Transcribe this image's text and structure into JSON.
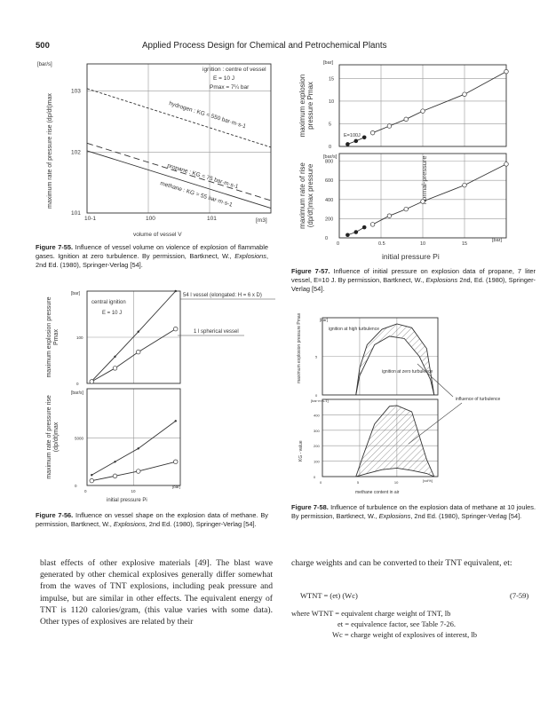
{
  "header": {
    "page_number": "500",
    "book_title": "Applied Process Design for Chemical and Petrochemical Plants"
  },
  "fig55": {
    "caption_label": "Figure 7-55.",
    "caption_text": " Influence of vessel volume on violence of explosion of flammable gases. Ignition at zero turbulence. By permission, Bartknect, W., ",
    "caption_italic": "Explosions",
    "caption_tail": ", 2nd Ed. (1980), Springer-Verlag [54].",
    "ylabel": "maximum rate of pressure rise (dp/dt)max",
    "yunit": "[bar/s]",
    "xunit": "[m3]",
    "xlabel": "volume of vessel V",
    "xticks": [
      "10-1",
      "100",
      "101"
    ],
    "yticks": [
      "101",
      "102",
      "103"
    ],
    "note": [
      "ignition : centre of vessel",
      "E = 10 J",
      "Pmax = 7¼ bar"
    ],
    "chart_data": {
      "type": "line",
      "xscale": "log",
      "yscale": "log",
      "xlim": [
        0.1,
        100
      ],
      "ylim": [
        10,
        2800
      ],
      "series": [
        {
          "name": "hydrogen : KG = 550 bar·m·s-1",
          "style": "dotted",
          "x": [
            0.1,
            100
          ],
          "y": [
            1100,
            120
          ]
        },
        {
          "name": "propane : KG = 75 bar·m·s-1",
          "style": "dashed",
          "x": [
            0.1,
            100
          ],
          "y": [
            140,
            16
          ]
        },
        {
          "name": "methane : KG = 55 bar·m·s-1",
          "style": "solid",
          "x": [
            0.1,
            100
          ],
          "y": [
            105,
            12
          ]
        }
      ]
    }
  },
  "fig57": {
    "caption_label": "Figure 7-57.",
    "caption_text": " Influence of initial pressure on explosion data of propane, 7 liter vessel, E=10 J. By permission, Bartknect, W., ",
    "caption_italic": "Explosions",
    "caption_tail": " 2nd, Ed. (1980), Springer-Verlag [54].",
    "top_ylabel": "maximum explosion pressure Pmax",
    "bottom_ylabel": "maximum rate of rise (dp/dt)max pressure",
    "top_unit": "[bar]",
    "bottom_unit": "[bar/s]",
    "xunit": "[bar]",
    "xlabel": "initial pressure Pi",
    "annotation_energy": "E=100J",
    "annotation_normal": "normal-pressure",
    "xticks": [
      "0",
      "0.5",
      "10",
      "15"
    ],
    "top_yticks": [
      "0",
      "5",
      "10",
      "15"
    ],
    "bottom_yticks": [
      "0",
      "200",
      "400",
      "600",
      "800"
    ],
    "chart_data": [
      {
        "type": "line",
        "xlim": [
          0,
          20
        ],
        "ylim": [
          0,
          18
        ],
        "series": [
          {
            "marker": "filled",
            "x": [
              1,
              2,
              3
            ],
            "y": [
              0.5,
              1.2,
              2
            ]
          },
          {
            "marker": "open",
            "x": [
              4,
              6,
              8,
              10,
              15,
              20
            ],
            "y": [
              3,
              4.5,
              6,
              7.8,
              11.5,
              16.5
            ]
          }
        ]
      },
      {
        "type": "line",
        "xlim": [
          0,
          20
        ],
        "ylim": [
          0,
          880
        ],
        "series": [
          {
            "marker": "filled",
            "x": [
              1,
              2,
              3
            ],
            "y": [
              30,
              60,
              110
            ]
          },
          {
            "marker": "open",
            "x": [
              4,
              6,
              8,
              10,
              15,
              20
            ],
            "y": [
              140,
              230,
              300,
              380,
              550,
              770
            ]
          }
        ]
      }
    ]
  },
  "fig56": {
    "caption_label": "Figure 7-56.",
    "caption_text": " Influence on vessel shape on the explosion data of methane. By permission, Bartknect, W., ",
    "caption_italic": "Explosions",
    "caption_tail": ", 2nd Ed. (1980), Springer-Verlag [54].",
    "top_ylabel": "maximum explosion pressure Pmax",
    "bottom_ylabel": "maximum rate of pressure rise (dp/dt)max",
    "top_unit": "[bar]",
    "bottom_unit": "[bar/s]",
    "xunit": "[bar]",
    "xlabel": "initial pressure Pi",
    "note": [
      "central ignition",
      "E = 10 J"
    ],
    "label_54l": "54 l vessel (elongated: H = 6 x D)",
    "label_1l": "1 l spherical vessel",
    "xticks": [
      "0",
      "10"
    ],
    "top_yticks": [
      "0",
      "100"
    ],
    "bottom_yticks": [
      "0",
      "5000"
    ],
    "chart_data": [
      {
        "type": "line",
        "xlim": [
          0,
          20
        ],
        "ylim": [
          0,
          200
        ],
        "series": [
          {
            "name": "54 l vessel (elongated: H = 6 x D)",
            "marker": "cross",
            "x": [
              1,
              6,
              11,
              19
            ],
            "y": [
              5,
              58,
              112,
              200
            ]
          },
          {
            "name": "1 l spherical vessel",
            "marker": "open",
            "x": [
              1,
              6,
              11,
              19
            ],
            "y": [
              4,
              33,
              68,
              118
            ]
          }
        ]
      },
      {
        "type": "line",
        "xlim": [
          0,
          20
        ],
        "ylim": [
          0,
          10200
        ],
        "series": [
          {
            "marker": "cross",
            "x": [
              1,
              6,
              11,
              19
            ],
            "y": [
              1100,
              2500,
              3900,
              6800
            ]
          },
          {
            "marker": "open",
            "x": [
              1,
              6,
              11,
              19
            ],
            "y": [
              500,
              1000,
              1500,
              2500
            ]
          }
        ]
      }
    ]
  },
  "fig58": {
    "caption_label": "Figure 7-58.",
    "caption_text": " Influence of turbulence on the explosion data of methane at 10 joules. By permission, Bartknect, W., ",
    "caption_italic": "Explosions",
    "caption_tail": ", 2nd Ed. (1980), Springer-Verlag [54].",
    "top_ylabel": "maximum explosion pressure Pmax",
    "bottom_ylabel": "KG - value",
    "top_unit": "[bar]",
    "bottom_unit": "[bar·m·s-1]",
    "xunit": "[vol%]",
    "xlabel": "methane content in air",
    "label_high": "ignition at high turbulence",
    "label_zero": "ignition at zero turbulence",
    "label_influence": "influence of turbulence",
    "xticks": [
      "0",
      "5",
      "10"
    ],
    "top_yticks": [
      "0",
      "5"
    ],
    "bottom_yticks": [
      "0",
      "100",
      "200",
      "300",
      "400"
    ],
    "chart_data": [
      {
        "type": "area",
        "xlim": [
          0,
          15.5
        ],
        "ylim": [
          0,
          10
        ],
        "series": [
          {
            "name": "ignition at high turbulence",
            "x": [
              4.5,
              5,
              6,
              8,
              10,
              12,
              14,
              15
            ],
            "y": [
              0,
              3.5,
              6.5,
              8.5,
              9.2,
              8.7,
              6,
              0
            ]
          },
          {
            "name": "ignition at zero turbulence",
            "x": [
              4.5,
              5,
              7,
              9,
              11,
              13,
              14.5,
              15
            ],
            "y": [
              0,
              2.5,
              6.5,
              7.6,
              7.3,
              5,
              2,
              0
            ]
          }
        ]
      },
      {
        "type": "area",
        "xlim": [
          0,
          15.5
        ],
        "ylim": [
          0,
          500
        ],
        "series": [
          {
            "x": [
              4.5,
              5.5,
              7,
              9,
              10,
              12,
              14,
              15
            ],
            "y": [
              0,
              140,
              340,
              455,
              460,
              420,
              110,
              0
            ]
          },
          {
            "x": [
              4.5,
              6,
              8,
              10,
              12,
              14,
              15
            ],
            "y": [
              0,
              20,
              45,
              55,
              40,
              20,
              0
            ]
          }
        ]
      }
    ]
  },
  "body": {
    "left": "blast effects of other explosive materials [49]. The blast wave generated by other chemical explosives generally differ somewhat from the waves of TNT explosions, including peak pressure and impulse, but are similar in other effects. The equivalent energy of TNT is 1120 calories/gram, (this value varies with some data). Other types of explosives are related by their",
    "right_intro": "charge weights and can be converted to their TNT equivalent, et:",
    "equation": "WTNT = (et) (Wc)",
    "equation_number": "(7-59)",
    "where": [
      "where WTNT = equivalent charge weight of TNT, lb",
      "et = equivalence factor, see Table 7-26.",
      "Wc = charge weight of explosives of interest, lb"
    ]
  }
}
